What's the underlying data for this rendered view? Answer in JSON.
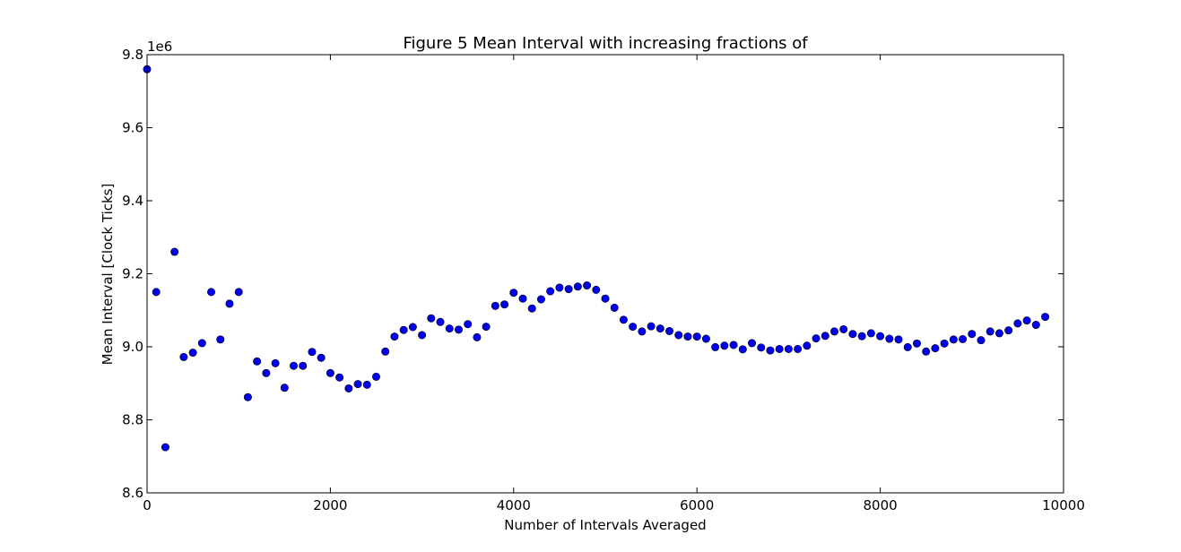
{
  "chart_data": {
    "type": "scatter",
    "title": "Figure 5 Mean Interval with increasing fractions of",
    "xlabel": "Number of Intervals Averaged",
    "ylabel": "Mean Interval [Clock Ticks]",
    "y_offset_label": "1e6",
    "xlim": [
      0,
      10000
    ],
    "ylim": [
      8.6,
      9.8
    ],
    "x_ticks": [
      0,
      2000,
      4000,
      6000,
      8000,
      10000
    ],
    "x_tick_labels": [
      "0",
      "2000",
      "4000",
      "6000",
      "8000",
      "10000"
    ],
    "y_ticks": [
      8.6,
      8.8,
      9.0,
      9.2,
      9.4,
      9.6,
      9.8
    ],
    "y_tick_labels": [
      "8.6",
      "8.8",
      "9.0",
      "9.2",
      "9.4",
      "9.6",
      "9.8"
    ],
    "grid": false,
    "marker_color": "#0000ee",
    "marker_edge_color": "#000000",
    "series": [
      {
        "x": [
          0,
          100,
          200,
          300,
          400,
          500,
          600,
          700,
          800,
          900,
          1000,
          1100,
          1200,
          1300,
          1400,
          1500,
          1600,
          1700,
          1800,
          1900,
          2000,
          2100,
          2200,
          2300,
          2400,
          2500,
          2600,
          2700,
          2800,
          2900,
          3000,
          3100,
          3200,
          3300,
          3400,
          3500,
          3600,
          3700,
          3800,
          3900,
          4000,
          4100,
          4200,
          4300,
          4400,
          4500,
          4600,
          4700,
          4800,
          4900,
          5000,
          5100,
          5200,
          5300,
          5400,
          5500,
          5600,
          5700,
          5800,
          5900,
          6000,
          6100,
          6200,
          6300,
          6400,
          6500,
          6600,
          6700,
          6800,
          6900,
          7000,
          7100,
          7200,
          7300,
          7400,
          7500,
          7600,
          7700,
          7800,
          7900,
          8000,
          8100,
          8200,
          8300,
          8400,
          8500,
          8600,
          8700,
          8800,
          8900,
          9000,
          9100,
          9200,
          9300,
          9400,
          9500,
          9600,
          9700,
          9800
        ],
        "y": [
          9.76,
          9.15,
          8.725,
          9.26,
          8.972,
          8.984,
          9.01,
          9.15,
          9.02,
          9.118,
          9.15,
          8.862,
          8.96,
          8.928,
          8.955,
          8.888,
          8.948,
          8.948,
          8.986,
          8.97,
          8.928,
          8.916,
          8.886,
          8.898,
          8.896,
          8.918,
          8.987,
          9.028,
          9.046,
          9.054,
          9.032,
          9.078,
          9.068,
          9.05,
          9.047,
          9.062,
          9.026,
          9.055,
          9.112,
          9.116,
          9.148,
          9.132,
          9.105,
          9.13,
          9.152,
          9.162,
          9.158,
          9.165,
          9.168,
          9.156,
          9.132,
          9.107,
          9.074,
          9.055,
          9.042,
          9.056,
          9.05,
          9.043,
          9.032,
          9.028,
          9.028,
          9.022,
          8.999,
          9.003,
          9.005,
          8.993,
          9.01,
          8.998,
          8.99,
          8.994,
          8.994,
          8.994,
          9.003,
          9.023,
          9.03,
          9.042,
          9.048,
          9.035,
          9.029,
          9.037,
          9.029,
          9.022,
          9.02,
          8.999,
          9.009,
          8.987,
          8.996,
          9.009,
          9.02,
          9.021,
          9.035,
          9.018,
          9.042,
          9.037,
          9.045,
          9.064,
          9.072,
          9.06,
          9.082
        ]
      }
    ]
  }
}
